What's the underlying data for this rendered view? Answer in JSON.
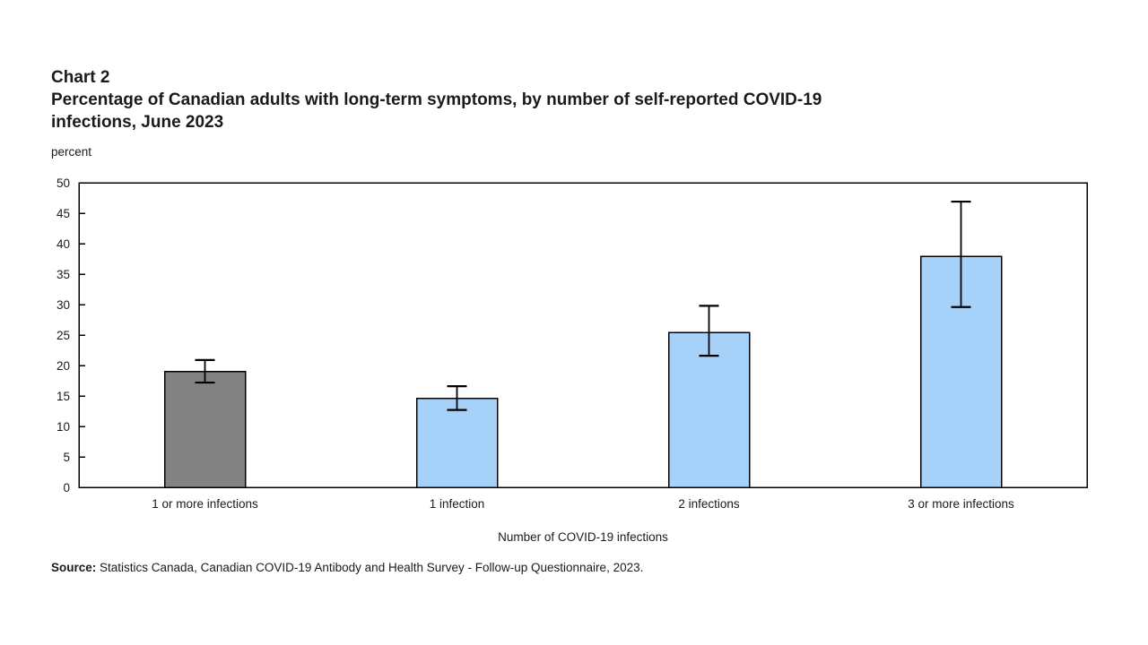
{
  "header": {
    "chart_label": "Chart 2"
  },
  "chart_data": {
    "type": "bar",
    "title": "Percentage of Canadian adults with long-term symptoms, by number of self-reported COVID-19 infections, June 2023",
    "title_lines": [
      "Percentage of Canadian adults with long-term symptoms, by number of self-reported COVID-19",
      "infections, June 2023"
    ],
    "ylabel": "percent",
    "xlabel": "Number of COVID-19 infections",
    "categories": [
      "1 or more infections",
      "1 infection",
      "2 infections",
      "3 or more infections"
    ],
    "values": [
      19.0,
      14.6,
      25.4,
      37.9
    ],
    "error_low": [
      17.2,
      12.7,
      21.6,
      29.6
    ],
    "error_high": [
      20.9,
      16.6,
      29.8,
      46.9
    ],
    "ylim": [
      0,
      50
    ],
    "ytick_step": 5,
    "grid": false,
    "legend": "none",
    "bar_colors": [
      "#828282",
      "#A6D2FA",
      "#A6D2FA",
      "#A6D2FA"
    ],
    "bar_border_color": "#000000",
    "error_bar_color": "#000000",
    "axis_color": "#000000"
  },
  "source": {
    "label": "Source:",
    "text": " Statistics Canada, Canadian COVID-19 Antibody and Health Survey - Follow-up Questionnaire, 2023."
  }
}
